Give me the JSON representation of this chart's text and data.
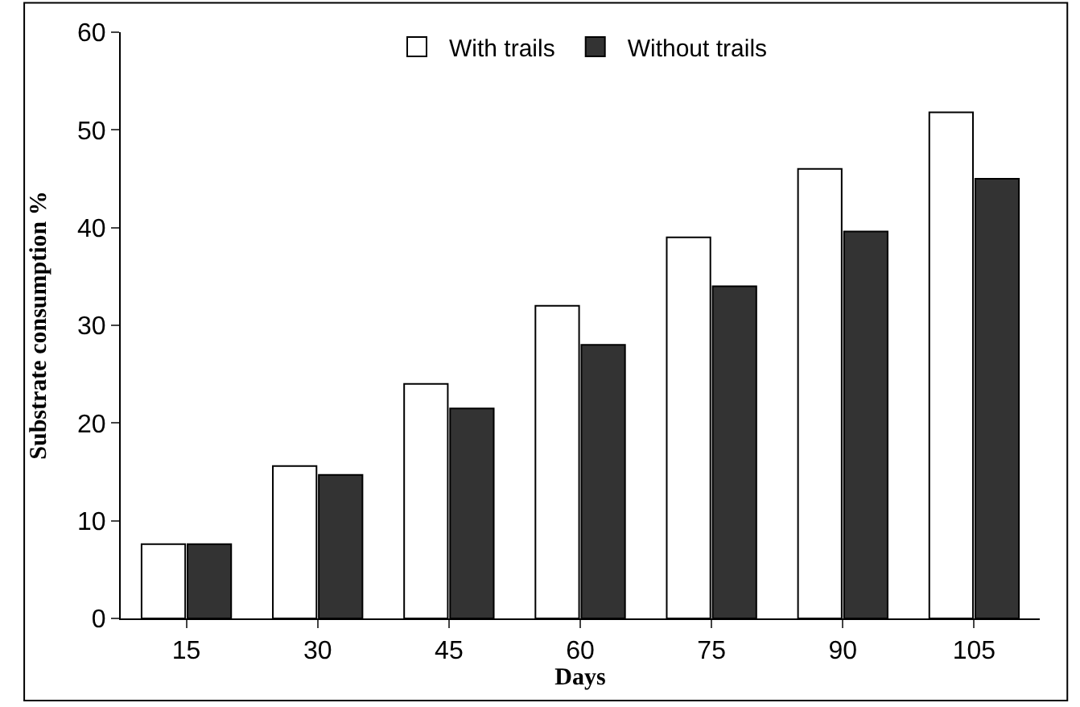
{
  "chart_data": {
    "type": "bar",
    "xlabel": "Days",
    "ylabel": "Substrate consumption %",
    "categories": [
      "15",
      "30",
      "45",
      "60",
      "75",
      "90",
      "105"
    ],
    "series": [
      {
        "name": "With trails",
        "color": "#ffffff",
        "values": [
          7.6,
          15.6,
          24,
          32,
          39,
          46,
          51.8
        ]
      },
      {
        "name": "Without trails",
        "color": "#333333",
        "values": [
          7.6,
          14.7,
          21.5,
          28,
          34,
          39.6,
          45
        ]
      }
    ],
    "ylim": [
      0,
      60
    ],
    "yticks": [
      0,
      10,
      20,
      30,
      40,
      50,
      60
    ],
    "legend": "top"
  }
}
